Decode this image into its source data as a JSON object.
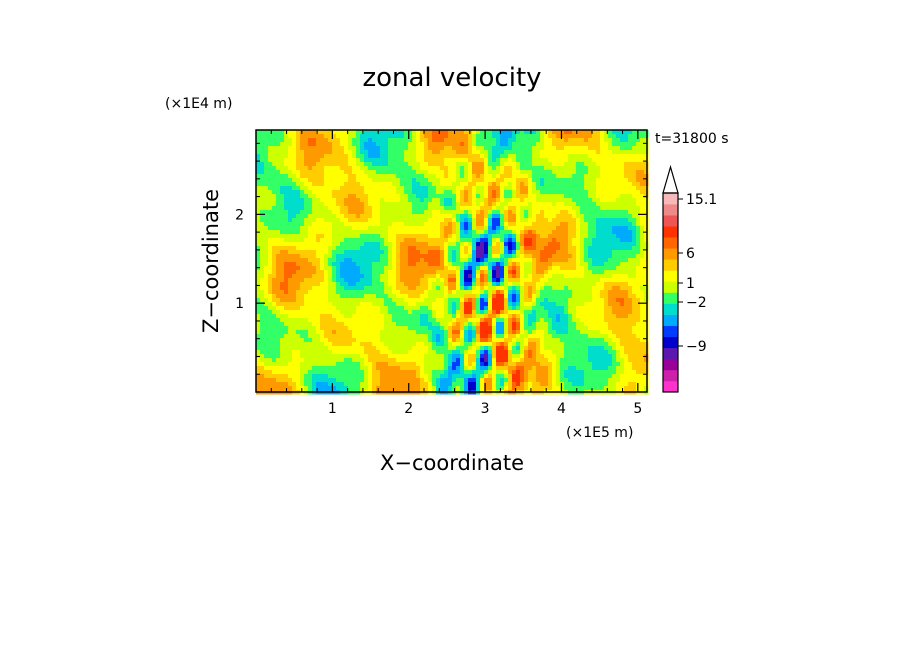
{
  "chart_data": {
    "type": "heatmap",
    "title": "zonal velocity",
    "xlabel": "X−coordinate",
    "ylabel": "Z−coordinate",
    "x_unit": "(×1E5 m)",
    "y_unit": "(×1E4 m)",
    "time_label": "t=31800 s",
    "xlim": [
      0,
      5.12
    ],
    "ylim": [
      0,
      2.95
    ],
    "x_ticks": [
      1,
      2,
      3,
      4,
      5
    ],
    "y_ticks": [
      1,
      2
    ],
    "colorbar": {
      "ticks": [
        "15.1",
        "6",
        "1",
        "−2",
        "−9"
      ],
      "tick_values": [
        15.1,
        6,
        1,
        -2,
        -9
      ],
      "levels": [
        {
          "color": "#ff33cc"
        },
        {
          "color": "#cc22aa"
        },
        {
          "color": "#990099"
        },
        {
          "color": "#5a18b0"
        },
        {
          "color": "#0000cc"
        },
        {
          "color": "#003cff"
        },
        {
          "color": "#00aaff"
        },
        {
          "color": "#00ddcc"
        },
        {
          "color": "#33ff66"
        },
        {
          "color": "#ccff00"
        },
        {
          "color": "#ffff00"
        },
        {
          "color": "#ffcc00"
        },
        {
          "color": "#ff9900"
        },
        {
          "color": "#ff6600"
        },
        {
          "color": "#ff3300"
        },
        {
          "color": "#ee5555"
        },
        {
          "color": "#f08a8a"
        },
        {
          "color": "#f6b8b8"
        }
      ]
    }
  }
}
